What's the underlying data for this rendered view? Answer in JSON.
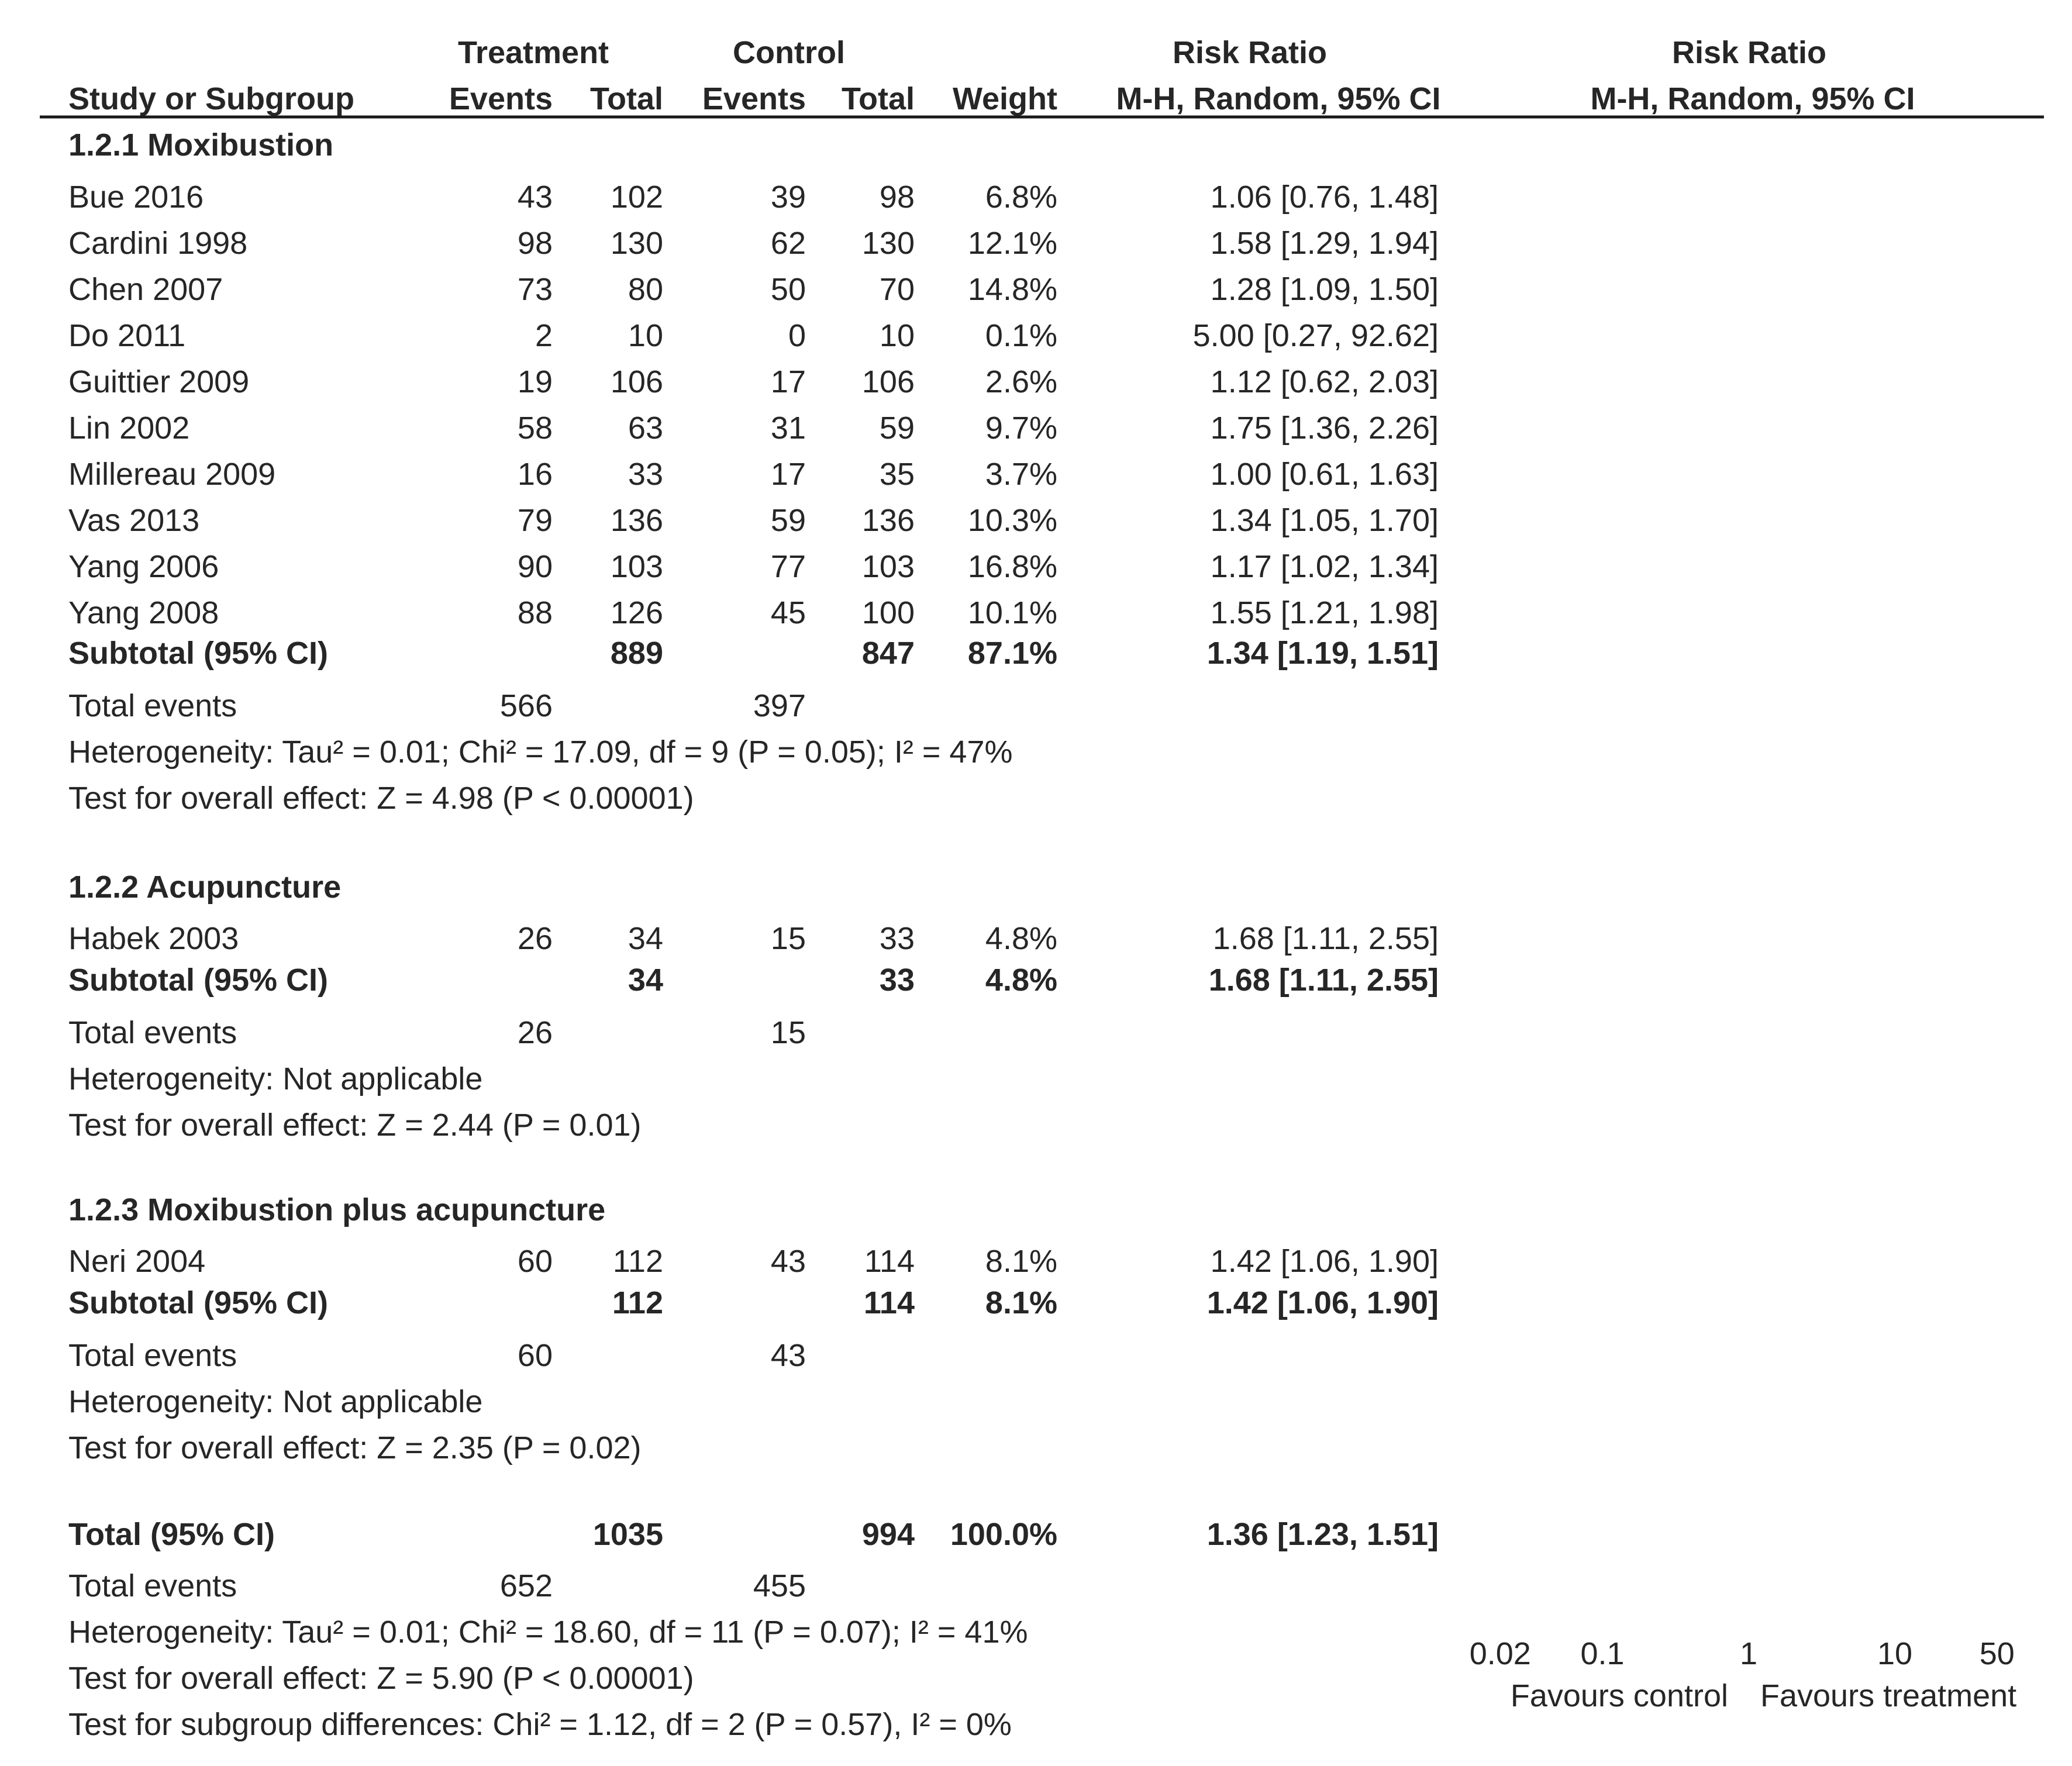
{
  "header": {
    "study_col": "Study or Subgroup",
    "group1": "Treatment",
    "group2": "Control",
    "events": "Events",
    "total": "Total",
    "weight": "Weight",
    "effect_title": "Risk Ratio",
    "effect_method": "M-H, Random, 95% CI",
    "plot_title": "Risk Ratio",
    "plot_method": "M-H, Random, 95% CI"
  },
  "chart_data": {
    "type": "forest",
    "scale": "log",
    "xlim": [
      0.02,
      50
    ],
    "x_ticks": [
      "0.02",
      "0.1",
      "1",
      "10",
      "50"
    ],
    "favours_left": "Favours control",
    "favours_right": "Favours treatment",
    "subgroups": [
      {
        "title": "1.2.1 Moxibustion",
        "studies": [
          {
            "name": "Bue 2016",
            "e1": "43",
            "t1": "102",
            "e2": "39",
            "t2": "98",
            "weight": "6.8%",
            "ci": "1.06 [0.76, 1.48]",
            "rr": 1.06,
            "lo": 0.76,
            "hi": 1.48
          },
          {
            "name": "Cardini 1998",
            "e1": "98",
            "t1": "130",
            "e2": "62",
            "t2": "130",
            "weight": "12.1%",
            "ci": "1.58 [1.29, 1.94]",
            "rr": 1.58,
            "lo": 1.29,
            "hi": 1.94
          },
          {
            "name": "Chen 2007",
            "e1": "73",
            "t1": "80",
            "e2": "50",
            "t2": "70",
            "weight": "14.8%",
            "ci": "1.28 [1.09, 1.50]",
            "rr": 1.28,
            "lo": 1.09,
            "hi": 1.5
          },
          {
            "name": "Do 2011",
            "e1": "2",
            "t1": "10",
            "e2": "0",
            "t2": "10",
            "weight": "0.1%",
            "ci": "5.00 [0.27, 92.62]",
            "rr": 5.0,
            "lo": 0.27,
            "hi": 92.62
          },
          {
            "name": "Guittier 2009",
            "e1": "19",
            "t1": "106",
            "e2": "17",
            "t2": "106",
            "weight": "2.6%",
            "ci": "1.12 [0.62, 2.03]",
            "rr": 1.12,
            "lo": 0.62,
            "hi": 2.03
          },
          {
            "name": "Lin 2002",
            "e1": "58",
            "t1": "63",
            "e2": "31",
            "t2": "59",
            "weight": "9.7%",
            "ci": "1.75 [1.36, 2.26]",
            "rr": 1.75,
            "lo": 1.36,
            "hi": 2.26
          },
          {
            "name": "Millereau 2009",
            "e1": "16",
            "t1": "33",
            "e2": "17",
            "t2": "35",
            "weight": "3.7%",
            "ci": "1.00 [0.61, 1.63]",
            "rr": 1.0,
            "lo": 0.61,
            "hi": 1.63
          },
          {
            "name": "Vas 2013",
            "e1": "79",
            "t1": "136",
            "e2": "59",
            "t2": "136",
            "weight": "10.3%",
            "ci": "1.34 [1.05, 1.70]",
            "rr": 1.34,
            "lo": 1.05,
            "hi": 1.7
          },
          {
            "name": "Yang 2006",
            "e1": "90",
            "t1": "103",
            "e2": "77",
            "t2": "103",
            "weight": "16.8%",
            "ci": "1.17 [1.02, 1.34]",
            "rr": 1.17,
            "lo": 1.02,
            "hi": 1.34
          },
          {
            "name": "Yang 2008",
            "e1": "88",
            "t1": "126",
            "e2": "45",
            "t2": "100",
            "weight": "10.1%",
            "ci": "1.55 [1.21, 1.98]",
            "rr": 1.55,
            "lo": 1.21,
            "hi": 1.98
          }
        ],
        "subtotal": {
          "label": "Subtotal (95% CI)",
          "t1": "889",
          "t2": "847",
          "weight": "87.1%",
          "ci": "1.34 [1.19, 1.51]",
          "rr": 1.34,
          "lo": 1.19,
          "hi": 1.51
        },
        "events": {
          "label": "Total events",
          "e1": "566",
          "e2": "397"
        },
        "heterogeneity": "Heterogeneity: Tau² = 0.01; Chi² = 17.09, df = 9 (P = 0.05); I² = 47%",
        "overall": "Test for overall effect: Z = 4.98 (P < 0.00001)"
      },
      {
        "title": "1.2.2 Acupuncture",
        "studies": [
          {
            "name": "Habek 2003",
            "e1": "26",
            "t1": "34",
            "e2": "15",
            "t2": "33",
            "weight": "4.8%",
            "ci": "1.68 [1.11, 2.55]",
            "rr": 1.68,
            "lo": 1.11,
            "hi": 2.55
          }
        ],
        "subtotal": {
          "label": "Subtotal (95% CI)",
          "t1": "34",
          "t2": "33",
          "weight": "4.8%",
          "ci": "1.68 [1.11, 2.55]",
          "rr": 1.68,
          "lo": 1.11,
          "hi": 2.55
        },
        "events": {
          "label": "Total events",
          "e1": "26",
          "e2": "15"
        },
        "heterogeneity": "Heterogeneity: Not applicable",
        "overall": "Test for overall effect: Z = 2.44 (P = 0.01)"
      },
      {
        "title": "1.2.3 Moxibustion plus acupuncture",
        "studies": [
          {
            "name": "Neri 2004",
            "e1": "60",
            "t1": "112",
            "e2": "43",
            "t2": "114",
            "weight": "8.1%",
            "ci": "1.42 [1.06, 1.90]",
            "rr": 1.42,
            "lo": 1.06,
            "hi": 1.9
          }
        ],
        "subtotal": {
          "label": "Subtotal (95% CI)",
          "t1": "112",
          "t2": "114",
          "weight": "8.1%",
          "ci": "1.42 [1.06, 1.90]",
          "rr": 1.42,
          "lo": 1.06,
          "hi": 1.9
        },
        "events": {
          "label": "Total events",
          "e1": "60",
          "e2": "43"
        },
        "heterogeneity": "Heterogeneity: Not applicable",
        "overall": "Test for overall effect: Z = 2.35 (P = 0.02)"
      }
    ],
    "total": {
      "label": "Total (95% CI)",
      "t1": "1035",
      "t2": "994",
      "weight": "100.0%",
      "ci": "1.36 [1.23, 1.51]",
      "rr": 1.36,
      "lo": 1.23,
      "hi": 1.51
    },
    "total_events": {
      "label": "Total events",
      "e1": "652",
      "e2": "455"
    },
    "total_heterogeneity": "Heterogeneity: Tau² = 0.01; Chi² = 18.60, df = 11 (P = 0.07); I² = 41%",
    "total_overall": "Test for overall effect: Z = 5.90 (P < 0.00001)",
    "subgroup_differences": "Test for subgroup differences: Chi² = 1.12, df = 2 (P = 0.57), I² = 0%"
  },
  "colors": {
    "text": "#262626",
    "marker": "#1616cc",
    "line": "#1a1a1a",
    "diamond": "#000000"
  }
}
